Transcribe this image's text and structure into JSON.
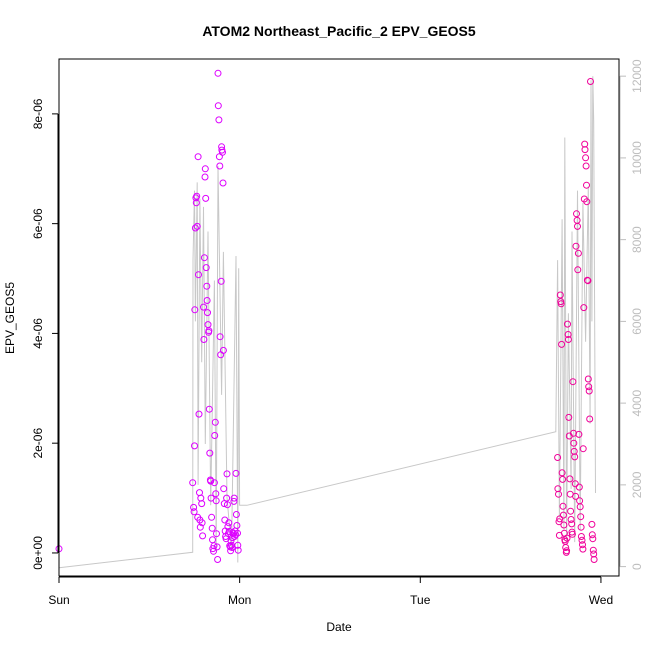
{
  "chart_data": {
    "type": "scatter",
    "title": "ATOM2 Northeast_Pacific_2 EPV_GEOS5",
    "xlabel": "Date",
    "ylabel": "EPV_GEOS5",
    "xlim": [
      0,
      3.1
    ],
    "ylim": [
      -4.2e-07,
      9e-06
    ],
    "y2lim": [
      -230,
      12420
    ],
    "x_ticks": [
      {
        "value": 0,
        "label": "Sun"
      },
      {
        "value": 1,
        "label": "Mon"
      },
      {
        "value": 2,
        "label": "Tue"
      },
      {
        "value": 3,
        "label": "Wed"
      }
    ],
    "y_ticks": [
      {
        "value": 0,
        "label": "0e+00"
      },
      {
        "value": 2e-06,
        "label": "2e-06"
      },
      {
        "value": 4e-06,
        "label": "4e-06"
      },
      {
        "value": 6e-06,
        "label": "6e-06"
      },
      {
        "value": 8e-06,
        "label": "8e-06"
      }
    ],
    "y2_ticks": [
      {
        "value": 0,
        "label": "0"
      },
      {
        "value": 2000,
        "label": "2000"
      },
      {
        "value": 4000,
        "label": "4000"
      },
      {
        "value": 6000,
        "label": "6000"
      },
      {
        "value": 8000,
        "label": "8000"
      },
      {
        "value": 10000,
        "label": "10000"
      },
      {
        "value": 12000,
        "label": "12000"
      }
    ],
    "colors": {
      "points_mon": "#dd00ff",
      "points_wed": "#f0009a",
      "altitude_line": "#c8c8c8",
      "axis": "#000000",
      "right_axis": "#bdbdbd"
    },
    "series": [
      {
        "values": [
          [
            0.0,
            7.6e-08
          ],
          [
            0.74,
            1.28e-06
          ],
          [
            0.745,
            8.3e-07
          ],
          [
            0.748,
            7.5e-07
          ],
          [
            0.75,
            1.95e-06
          ],
          [
            0.752,
            4.43e-06
          ],
          [
            0.755,
            5.92e-06
          ],
          [
            0.758,
            6.47e-06
          ],
          [
            0.76,
            6.38e-06
          ],
          [
            0.762,
            6.5e-06
          ],
          [
            0.765,
            5.95e-06
          ],
          [
            0.768,
            6.5e-07
          ],
          [
            0.77,
            7.22e-06
          ],
          [
            0.772,
            5.07e-06
          ],
          [
            0.775,
            2.53e-06
          ],
          [
            0.778,
            1.1e-06
          ],
          [
            0.78,
            6e-07
          ],
          [
            0.782,
            4.7e-07
          ],
          [
            0.785,
            1e-06
          ],
          [
            0.79,
            9e-07
          ],
          [
            0.792,
            5.5e-07
          ],
          [
            0.795,
            3.1e-07
          ],
          [
            0.8,
            4.48e-06
          ],
          [
            0.802,
            3.89e-06
          ],
          [
            0.805,
            5.38e-06
          ],
          [
            0.808,
            6.85e-06
          ],
          [
            0.81,
            7e-06
          ],
          [
            0.812,
            6.46e-06
          ],
          [
            0.815,
            5.2e-06
          ],
          [
            0.818,
            4.86e-06
          ],
          [
            0.82,
            4.6e-06
          ],
          [
            0.822,
            4.38e-06
          ],
          [
            0.825,
            4.16e-06
          ],
          [
            0.828,
            4.02e-06
          ],
          [
            0.83,
            4.05e-06
          ],
          [
            0.832,
            2.62e-06
          ],
          [
            0.835,
            1.82e-06
          ],
          [
            0.838,
            1.33e-06
          ],
          [
            0.84,
            1.31e-06
          ],
          [
            0.842,
            1e-06
          ],
          [
            0.845,
            6.5e-07
          ],
          [
            0.848,
            4.5e-07
          ],
          [
            0.85,
            2.4e-07
          ],
          [
            0.852,
            8e-08
          ],
          [
            0.855,
            3e-08
          ],
          [
            0.858,
            1.3e-07
          ],
          [
            0.86,
            1.28e-06
          ],
          [
            0.862,
            2.14e-06
          ],
          [
            0.865,
            2.38e-06
          ],
          [
            0.868,
            1.08e-06
          ],
          [
            0.87,
            9.5e-07
          ],
          [
            0.872,
            3.5e-07
          ],
          [
            0.875,
            1.1e-07
          ],
          [
            0.878,
            -1.2e-07
          ],
          [
            0.88,
            8.74e-06
          ],
          [
            0.882,
            8.15e-06
          ],
          [
            0.885,
            7.89e-06
          ],
          [
            0.888,
            7.22e-06
          ],
          [
            0.89,
            7.05e-06
          ],
          [
            0.892,
            3.94e-06
          ],
          [
            0.895,
            3.61e-06
          ],
          [
            0.898,
            4.95e-06
          ],
          [
            0.9,
            7.4e-06
          ],
          [
            0.902,
            7.34e-06
          ],
          [
            0.905,
            7.3e-06
          ],
          [
            0.908,
            6.74e-06
          ],
          [
            0.91,
            3.69e-06
          ],
          [
            0.912,
            1.17e-06
          ],
          [
            0.915,
            9e-07
          ],
          [
            0.918,
            6e-07
          ],
          [
            0.92,
            4e-07
          ],
          [
            0.922,
            3e-07
          ],
          [
            0.925,
            2.6e-07
          ],
          [
            0.928,
            1e-06
          ],
          [
            0.93,
            1.44e-06
          ],
          [
            0.932,
            8.8e-07
          ],
          [
            0.935,
            4.8e-07
          ],
          [
            0.938,
            3.5e-07
          ],
          [
            0.94,
            5.5e-07
          ],
          [
            0.942,
            3.9e-07
          ],
          [
            0.945,
            1.3e-07
          ],
          [
            0.948,
            1.1e-07
          ],
          [
            0.95,
            4e-08
          ],
          [
            0.952,
            2.2e-07
          ],
          [
            0.955,
            1.4e-07
          ],
          [
            0.958,
            1e-07
          ],
          [
            0.96,
            2.8e-07
          ],
          [
            0.962,
            3.7e-07
          ],
          [
            0.965,
            3.5e-07
          ],
          [
            0.968,
            9.4e-07
          ],
          [
            0.97,
            1e-06
          ],
          [
            0.972,
            3e-07
          ],
          [
            0.975,
            4e-07
          ],
          [
            0.978,
            3.3e-07
          ],
          [
            0.98,
            1.45e-06
          ],
          [
            0.982,
            7e-07
          ],
          [
            0.985,
            5e-07
          ],
          [
            0.988,
            3.6e-07
          ],
          [
            0.99,
            1.4e-07
          ],
          [
            0.992,
            5e-08
          ]
        ]
      },
      {
        "values": [
          [
            2.76,
            1.74e-06
          ],
          [
            2.762,
            1.17e-06
          ],
          [
            2.765,
            1.07e-06
          ],
          [
            2.768,
            5.7e-07
          ],
          [
            2.77,
            3.2e-07
          ],
          [
            2.772,
            6.2e-07
          ],
          [
            2.775,
            4.7e-06
          ],
          [
            2.778,
            4.58e-06
          ],
          [
            2.78,
            4.54e-06
          ],
          [
            2.782,
            3.8e-06
          ],
          [
            2.785,
            1.46e-06
          ],
          [
            2.788,
            1.34e-06
          ],
          [
            2.79,
            8.5e-07
          ],
          [
            2.792,
            6.9e-07
          ],
          [
            2.795,
            5.1e-07
          ],
          [
            2.798,
            3.6e-07
          ],
          [
            2.8,
            2.4e-07
          ],
          [
            2.802,
            2.1e-07
          ],
          [
            2.805,
            1e-07
          ],
          [
            2.808,
            1e-08
          ],
          [
            2.81,
            4e-08
          ],
          [
            2.812,
            2.7e-07
          ],
          [
            2.815,
            4.17e-06
          ],
          [
            2.818,
            3.98e-06
          ],
          [
            2.82,
            3.89e-06
          ],
          [
            2.822,
            2.47e-06
          ],
          [
            2.825,
            2.13e-06
          ],
          [
            2.828,
            1.35e-06
          ],
          [
            2.83,
            1.07e-06
          ],
          [
            2.832,
            7.6e-07
          ],
          [
            2.835,
            6.1e-07
          ],
          [
            2.838,
            5.3e-07
          ],
          [
            2.84,
            3.8e-07
          ],
          [
            2.842,
            3.4e-07
          ],
          [
            2.845,
            3.12e-06
          ],
          [
            2.848,
            2.18e-06
          ],
          [
            2.85,
            2e-06
          ],
          [
            2.852,
            1.85e-06
          ],
          [
            2.855,
            1.75e-06
          ],
          [
            2.858,
            1.26e-06
          ],
          [
            2.86,
            1.03e-06
          ],
          [
            2.862,
            5.59e-06
          ],
          [
            2.865,
            6.18e-06
          ],
          [
            2.868,
            6.06e-06
          ],
          [
            2.87,
            5.95e-06
          ],
          [
            2.872,
            5.16e-06
          ],
          [
            2.875,
            5.46e-06
          ],
          [
            2.878,
            2.16e-06
          ],
          [
            2.88,
            1.2e-06
          ],
          [
            2.882,
            9.5e-07
          ],
          [
            2.885,
            8.4e-07
          ],
          [
            2.888,
            6.6e-07
          ],
          [
            2.89,
            4.7e-07
          ],
          [
            2.892,
            3e-07
          ],
          [
            2.895,
            2.3e-07
          ],
          [
            2.898,
            1.5e-07
          ],
          [
            2.9,
            7e-08
          ],
          [
            2.902,
            1.9e-06
          ],
          [
            2.905,
            4.47e-06
          ],
          [
            2.908,
            6.45e-06
          ],
          [
            2.91,
            7.45e-06
          ],
          [
            2.912,
            7.35e-06
          ],
          [
            2.915,
            7.2e-06
          ],
          [
            2.918,
            7.05e-06
          ],
          [
            2.92,
            6.7e-06
          ],
          [
            2.922,
            6.4e-06
          ],
          [
            2.925,
            4.97e-06
          ],
          [
            2.928,
            4.96e-06
          ],
          [
            2.93,
            3.17e-06
          ],
          [
            2.932,
            3.03e-06
          ],
          [
            2.935,
            2.95e-06
          ],
          [
            2.938,
            2.44e-06
          ],
          [
            2.942,
            8.59e-06
          ],
          [
            2.95,
            5.2e-07
          ],
          [
            2.952,
            3.3e-07
          ],
          [
            2.955,
            2.6e-07
          ],
          [
            2.958,
            5e-08
          ],
          [
            2.96,
            -2e-08
          ],
          [
            2.962,
            -1.2e-07
          ]
        ]
      }
    ],
    "altitude_path": [
      [
        0.0,
        -30
      ],
      [
        0.74,
        350
      ],
      [
        0.742,
        7500
      ],
      [
        0.75,
        9200
      ],
      [
        0.755,
        6000
      ],
      [
        0.765,
        9400
      ],
      [
        0.77,
        2000
      ],
      [
        0.78,
        9000
      ],
      [
        0.79,
        5000
      ],
      [
        0.8,
        8800
      ],
      [
        0.81,
        3000
      ],
      [
        0.825,
        8200
      ],
      [
        0.84,
        1500
      ],
      [
        0.86,
        7000
      ],
      [
        0.87,
        400
      ],
      [
        0.88,
        9800
      ],
      [
        0.9,
        4200
      ],
      [
        0.91,
        7700
      ],
      [
        0.93,
        1700
      ],
      [
        0.955,
        400
      ],
      [
        0.98,
        7600
      ],
      [
        0.99,
        100
      ],
      [
        0.995,
        7300
      ],
      [
        1.0,
        1500
      ],
      [
        1.04,
        1500
      ],
      [
        2.75,
        3300
      ],
      [
        2.76,
        7500
      ],
      [
        2.77,
        1200
      ],
      [
        2.785,
        8500
      ],
      [
        2.795,
        900
      ],
      [
        2.8,
        10500
      ],
      [
        2.81,
        600
      ],
      [
        2.82,
        6200
      ],
      [
        2.835,
        1900
      ],
      [
        2.84,
        8200
      ],
      [
        2.855,
        600
      ],
      [
        2.87,
        9200
      ],
      [
        2.885,
        900
      ],
      [
        2.9,
        8900
      ],
      [
        2.915,
        5500
      ],
      [
        2.93,
        9300
      ],
      [
        2.94,
        3500
      ],
      [
        2.945,
        11900
      ],
      [
        2.95,
        6000
      ],
      [
        2.955,
        12000
      ],
      [
        2.96,
        10900
      ],
      [
        2.97,
        1800
      ]
    ]
  }
}
